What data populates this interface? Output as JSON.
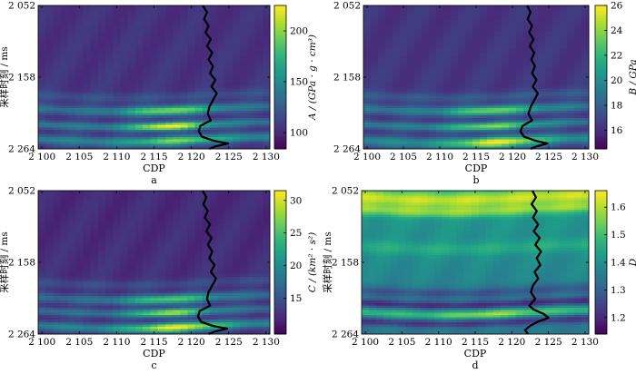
{
  "colors": {
    "viridis": [
      "#440154",
      "#482878",
      "#3e4989",
      "#31688e",
      "#26828e",
      "#1f9e89",
      "#35b779",
      "#6ece58",
      "#b5de2b",
      "#fde725"
    ],
    "well_log": "#000000",
    "frame": "#000000"
  },
  "chart_data": [
    {
      "type": "heatmap",
      "panel_label": "a",
      "xlabel": "CDP",
      "ylabel": "采样时刻 / ms",
      "xlim": [
        2099.5,
        2130.5
      ],
      "ylim": [
        2052,
        2264
      ],
      "xticks": [
        2100,
        2105,
        2110,
        2115,
        2120,
        2125,
        2130
      ],
      "xtick_labels": [
        "2 100",
        "2 105",
        "2 110",
        "2 115",
        "2 120",
        "2 125",
        "2 130"
      ],
      "yticks": [
        2052,
        2158,
        2264
      ],
      "ytick_labels": [
        "2 052",
        "2 158",
        "2 264"
      ],
      "colorbar": {
        "label": "A / (GPa · g · cm³)",
        "range": [
          84,
          225
        ],
        "ticks": [
          100,
          150,
          200
        ],
        "tick_labels": [
          "100",
          "150",
          "200"
        ]
      },
      "field": {
        "base": 0.14,
        "gradient": 0.02,
        "bands": [
          {
            "t": 2185,
            "amp": 0.1,
            "width": 7
          },
          {
            "t": 2205,
            "amp": 0.22,
            "width": 7,
            "hot_center": 2117,
            "hot_spread": 6,
            "hot_amp": 0.45
          },
          {
            "t": 2228,
            "amp": 0.26,
            "width": 6,
            "hot_center": 2117,
            "hot_spread": 5,
            "hot_amp": 0.6
          },
          {
            "t": 2250,
            "amp": 0.3,
            "width": 7,
            "hot_center": 2118,
            "hot_spread": 6,
            "hot_amp": 0.35
          }
        ]
      },
      "well_log": {
        "cdp": [
          2121.5,
          2122.1,
          2121.7,
          2122.3,
          2121.9,
          2122.6,
          2122.1,
          2122.8,
          2122.3,
          2122.9,
          2122.5,
          2123.2,
          2122.7,
          2123.4,
          2122.9,
          2122.4,
          2122.2,
          2122.6,
          2121.2,
          2121.0,
          2121.4,
          2123.0,
          2124.9,
          2123.3,
          2122.4
        ],
        "time": [
          2052,
          2062,
          2072,
          2082,
          2092,
          2102,
          2112,
          2122,
          2132,
          2142,
          2152,
          2162,
          2172,
          2182,
          2192,
          2202,
          2212,
          2222,
          2230,
          2238,
          2246,
          2252,
          2256,
          2260,
          2264
        ]
      }
    },
    {
      "type": "heatmap",
      "panel_label": "b",
      "xlabel": "CDP",
      "ylabel": "",
      "xlim": [
        2099.5,
        2130.5
      ],
      "ylim": [
        2052,
        2264
      ],
      "xticks": [
        2100,
        2105,
        2110,
        2115,
        2120,
        2125,
        2130
      ],
      "xtick_labels": [
        "2 100",
        "2 105",
        "2 110",
        "2 115",
        "2 120",
        "2 125",
        "2 130"
      ],
      "yticks": [
        2052,
        2158,
        2264
      ],
      "ytick_labels": [
        "2 052",
        "2 158",
        "2 264"
      ],
      "colorbar": {
        "label": "B / GPa",
        "range": [
          14.5,
          26
        ],
        "ticks": [
          16,
          18,
          20,
          22,
          24,
          26
        ],
        "tick_labels": [
          "16",
          "18",
          "20",
          "22",
          "24",
          "26"
        ]
      },
      "field": {
        "base": 0.15,
        "gradient": 0.02,
        "bands": [
          {
            "t": 2185,
            "amp": 0.12,
            "width": 7
          },
          {
            "t": 2205,
            "amp": 0.24,
            "width": 7,
            "hot_center": 2117,
            "hot_spread": 6,
            "hot_amp": 0.4
          },
          {
            "t": 2228,
            "amp": 0.26,
            "width": 6,
            "hot_center": 2117,
            "hot_spread": 6,
            "hot_amp": 0.4
          },
          {
            "t": 2252,
            "amp": 0.32,
            "width": 8,
            "hot_center": 2118,
            "hot_spread": 6,
            "hot_amp": 0.52
          }
        ]
      },
      "well_log": {
        "cdp": [
          2122.0,
          2122.5,
          2122.1,
          2122.7,
          2122.3,
          2122.9,
          2122.4,
          2123.0,
          2122.6,
          2123.1,
          2122.7,
          2123.3,
          2122.8,
          2123.5,
          2123.0,
          2122.5,
          2122.2,
          2122.7,
          2121.4,
          2121.1,
          2121.6,
          2123.2,
          2124.8,
          2123.4,
          2122.5
        ],
        "time": [
          2052,
          2062,
          2072,
          2082,
          2092,
          2102,
          2112,
          2122,
          2132,
          2142,
          2152,
          2162,
          2172,
          2182,
          2192,
          2202,
          2212,
          2222,
          2230,
          2238,
          2246,
          2252,
          2256,
          2260,
          2264
        ]
      }
    },
    {
      "type": "heatmap",
      "panel_label": "c",
      "xlabel": "CDP",
      "ylabel": "采样时刻 / ms",
      "xlim": [
        2099.5,
        2130.5
      ],
      "ylim": [
        2052,
        2264
      ],
      "xticks": [
        2100,
        2105,
        2110,
        2115,
        2120,
        2125,
        2130
      ],
      "xtick_labels": [
        "2 100",
        "2 105",
        "2 110",
        "2 115",
        "2 120",
        "2 125",
        "2 130"
      ],
      "yticks": [
        2052,
        2158,
        2264
      ],
      "ytick_labels": [
        "2 052",
        "2 158",
        "2 264"
      ],
      "colorbar": {
        "label": "C / (km² · s²)",
        "range": [
          9.5,
          31.5
        ],
        "ticks": [
          15,
          20,
          25,
          30
        ],
        "tick_labels": [
          "15",
          "20",
          "25",
          "30"
        ]
      },
      "field": {
        "base": 0.12,
        "gradient": 0.02,
        "bands": [
          {
            "t": 2188,
            "amp": 0.1,
            "width": 7
          },
          {
            "t": 2210,
            "amp": 0.22,
            "width": 7,
            "hot_center": 2117,
            "hot_spread": 6,
            "hot_amp": 0.4
          },
          {
            "t": 2230,
            "amp": 0.24,
            "width": 6,
            "hot_center": 2117,
            "hot_spread": 5,
            "hot_amp": 0.5
          },
          {
            "t": 2252,
            "amp": 0.32,
            "width": 7,
            "hot_center": 2118,
            "hot_spread": 6,
            "hot_amp": 0.55
          }
        ]
      },
      "well_log": {
        "cdp": [
          2121.5,
          2122.0,
          2121.6,
          2122.2,
          2121.8,
          2122.5,
          2122.0,
          2122.7,
          2122.2,
          2122.8,
          2122.4,
          2123.1,
          2122.6,
          2123.3,
          2122.8,
          2122.3,
          2122.1,
          2122.5,
          2121.1,
          2120.9,
          2121.3,
          2122.9,
          2124.8,
          2123.2,
          2122.3
        ],
        "time": [
          2052,
          2062,
          2072,
          2082,
          2092,
          2102,
          2112,
          2122,
          2132,
          2142,
          2152,
          2162,
          2172,
          2182,
          2192,
          2202,
          2212,
          2222,
          2230,
          2238,
          2246,
          2252,
          2256,
          2260,
          2264
        ]
      }
    },
    {
      "type": "heatmap",
      "panel_label": "d",
      "xlabel": "CDP",
      "ylabel": "采样时刻 / ms",
      "xlim": [
        2099.5,
        2130.5
      ],
      "ylim": [
        2052,
        2264
      ],
      "xticks": [
        2100,
        2105,
        2110,
        2115,
        2120,
        2125,
        2130
      ],
      "xtick_labels": [
        "2 100",
        "2 105",
        "2 110",
        "2 115",
        "2 120",
        "2 125",
        "2 130"
      ],
      "yticks": [
        2052,
        2158,
        2264
      ],
      "ytick_labels": [
        "2 052",
        "2 158",
        "2 264"
      ],
      "colorbar": {
        "label": "D",
        "range": [
          1.14,
          1.66
        ],
        "ticks": [
          1.2,
          1.3,
          1.4,
          1.5,
          1.6
        ],
        "tick_labels": [
          "1.2",
          "1.3",
          "1.4",
          "1.5",
          "1.6"
        ]
      },
      "field": {
        "base": 0.55,
        "gradient": -0.15,
        "bands": [
          {
            "t": 2062,
            "amp": 0.38,
            "width": 12
          },
          {
            "t": 2080,
            "amp": 0.28,
            "width": 8
          },
          {
            "t": 2135,
            "amp": 0.12,
            "width": 10
          },
          {
            "t": 2200,
            "amp": -0.18,
            "width": 8
          },
          {
            "t": 2218,
            "amp": -0.3,
            "width": 6
          },
          {
            "t": 2232,
            "amp": 0.25,
            "width": 6,
            "hot_center": 2117,
            "hot_spread": 6,
            "hot_amp": 0.2
          },
          {
            "t": 2245,
            "amp": -0.25,
            "width": 6
          }
        ]
      },
      "well_log": {
        "cdp": [
          2122.8,
          2123.3,
          2122.7,
          2123.4,
          2122.9,
          2123.6,
          2123.0,
          2123.8,
          2123.2,
          2124.0,
          2123.4,
          2123.9,
          2123.1,
          2123.6,
          2122.9,
          2122.6,
          2123.2,
          2122.4,
          2123.0,
          2124.3,
          2125.0,
          2123.5,
          2122.5,
          2121.8,
          2122.2
        ],
        "time": [
          2052,
          2062,
          2072,
          2082,
          2092,
          2102,
          2112,
          2122,
          2132,
          2142,
          2152,
          2162,
          2172,
          2182,
          2192,
          2202,
          2212,
          2222,
          2228,
          2234,
          2240,
          2246,
          2252,
          2258,
          2264
        ]
      }
    }
  ]
}
